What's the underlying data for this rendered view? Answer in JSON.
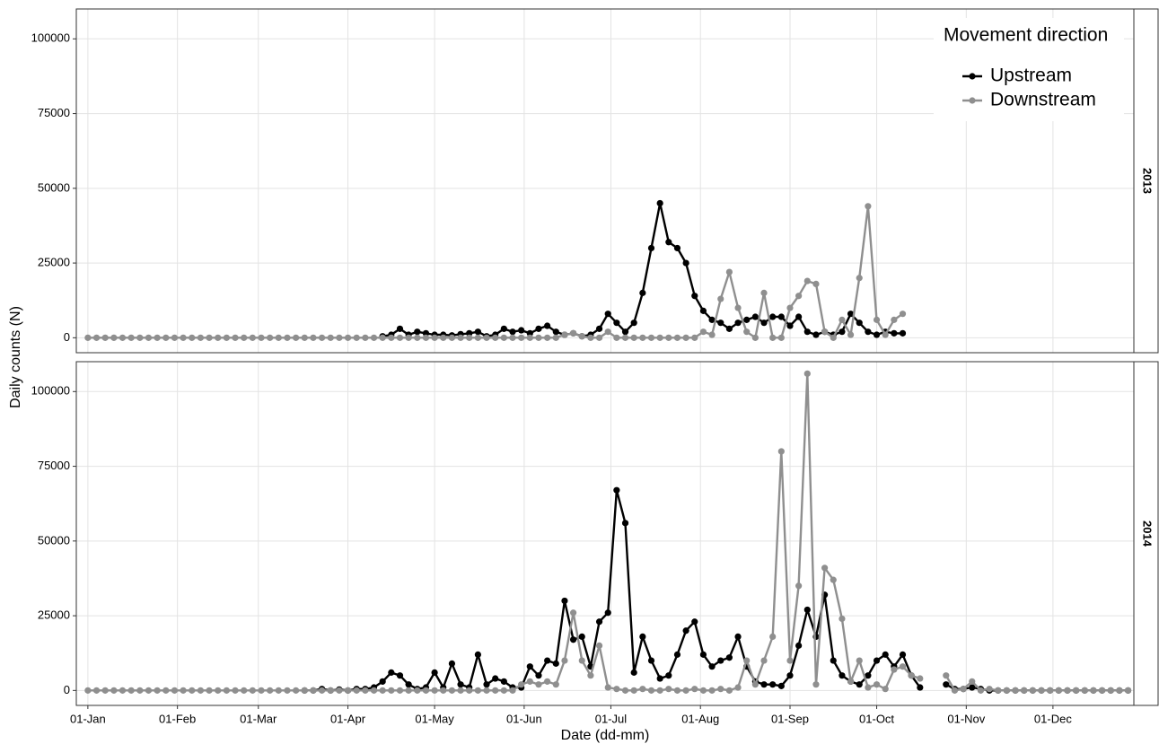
{
  "chart_data": [
    {
      "type": "line",
      "title": "2013",
      "y_label": "Daily counts (N)",
      "legend_title": "Movement direction",
      "x": [
        0,
        3,
        6,
        9,
        12,
        15,
        18,
        21,
        24,
        27,
        30,
        33,
        36,
        39,
        42,
        45,
        48,
        51,
        54,
        57,
        60,
        63,
        66,
        69,
        72,
        75,
        78,
        81,
        84,
        87,
        90,
        93,
        96,
        99,
        102,
        105,
        108,
        111,
        114,
        117,
        120,
        123,
        126,
        129,
        132,
        135,
        138,
        141,
        144,
        147,
        150,
        153,
        156,
        159,
        162,
        165,
        168,
        171,
        174,
        177,
        180,
        183,
        186,
        189,
        192,
        195,
        198,
        201,
        204,
        207,
        210,
        213,
        216,
        219,
        222,
        225,
        228,
        231,
        234,
        237,
        240,
        243,
        246,
        249,
        252,
        255,
        258,
        261,
        264,
        267,
        270,
        273,
        276,
        279,
        282,
        285,
        288,
        291,
        294,
        297,
        300,
        303,
        306,
        309,
        312,
        315,
        318,
        321,
        324,
        327,
        330,
        333,
        336,
        339,
        342,
        345,
        348,
        351,
        354,
        357,
        360
      ],
      "series": [
        {
          "name": "Upstream",
          "color": "#000000",
          "values": [
            null,
            null,
            null,
            null,
            null,
            null,
            null,
            null,
            null,
            null,
            null,
            null,
            null,
            null,
            null,
            null,
            null,
            null,
            null,
            null,
            null,
            null,
            null,
            null,
            null,
            null,
            null,
            null,
            null,
            null,
            null,
            null,
            null,
            null,
            500,
            1000,
            3000,
            1000,
            2000,
            1500,
            1000,
            1000,
            800,
            1200,
            1500,
            2000,
            500,
            1000,
            3000,
            2000,
            2500,
            1500,
            3000,
            4000,
            2000,
            1000,
            1500,
            500,
            1000,
            3000,
            8000,
            5000,
            2000,
            5000,
            15000,
            30000,
            45000,
            32000,
            30000,
            25000,
            14000,
            9000,
            6000,
            5000,
            3000,
            5000,
            6000,
            7000,
            5000,
            7000,
            7000,
            4000,
            7000,
            2000,
            1000,
            2000,
            1000,
            2000,
            8000,
            5000,
            2000,
            1000,
            2000,
            1500,
            1500,
            null,
            null,
            null,
            null,
            null,
            null,
            null,
            null,
            null,
            null,
            null,
            null,
            null,
            null,
            null,
            null,
            null,
            null,
            null,
            null,
            null,
            null,
            null,
            null,
            null,
            null
          ]
        },
        {
          "name": "Downstream",
          "color": "#8f8f8f",
          "values": [
            0,
            0,
            0,
            0,
            0,
            0,
            0,
            0,
            0,
            0,
            0,
            0,
            0,
            0,
            0,
            0,
            0,
            0,
            0,
            0,
            0,
            0,
            0,
            0,
            0,
            0,
            0,
            0,
            0,
            0,
            0,
            0,
            0,
            0,
            0,
            0,
            0,
            0,
            0,
            0,
            0,
            0,
            0,
            0,
            0,
            0,
            0,
            0,
            0,
            0,
            0,
            0,
            0,
            0,
            0,
            1000,
            1500,
            500,
            0,
            0,
            2000,
            0,
            0,
            0,
            0,
            0,
            0,
            0,
            0,
            0,
            0,
            2000,
            1000,
            13000,
            22000,
            10000,
            2000,
            0,
            15000,
            0,
            0,
            10000,
            14000,
            19000,
            18000,
            2000,
            0,
            6000,
            1000,
            20000,
            44000,
            6000,
            1000,
            6000,
            8000,
            null,
            null,
            null,
            null,
            null,
            null,
            null,
            null,
            null,
            null,
            null,
            null,
            null,
            null,
            null,
            null,
            null,
            null,
            null,
            null,
            null,
            null,
            null,
            null,
            null,
            null
          ]
        }
      ],
      "xlim": [
        -4,
        362
      ],
      "ylim": [
        -5000,
        110000
      ],
      "yticks": [
        0,
        25000,
        50000,
        75000,
        100000
      ],
      "grid": true,
      "legend": "top-right"
    },
    {
      "type": "line",
      "title": "2014",
      "x_label": "Date (dd-mm)",
      "x": [
        0,
        3,
        6,
        9,
        12,
        15,
        18,
        21,
        24,
        27,
        30,
        33,
        36,
        39,
        42,
        45,
        48,
        51,
        54,
        57,
        60,
        63,
        66,
        69,
        72,
        75,
        78,
        81,
        84,
        87,
        90,
        93,
        96,
        99,
        102,
        105,
        108,
        111,
        114,
        117,
        120,
        123,
        126,
        129,
        132,
        135,
        138,
        141,
        144,
        147,
        150,
        153,
        156,
        159,
        162,
        165,
        168,
        171,
        174,
        177,
        180,
        183,
        186,
        189,
        192,
        195,
        198,
        201,
        204,
        207,
        210,
        213,
        216,
        219,
        222,
        225,
        228,
        231,
        234,
        237,
        240,
        243,
        246,
        249,
        252,
        255,
        258,
        261,
        264,
        267,
        270,
        273,
        276,
        279,
        282,
        285,
        288,
        291,
        294,
        297,
        300,
        303,
        306,
        309,
        312,
        315,
        318,
        321,
        324,
        327,
        330,
        333,
        336,
        339,
        342,
        345,
        348,
        351,
        354,
        357,
        360
      ],
      "series": [
        {
          "color": "#000000",
          "values": [
            null,
            null,
            null,
            null,
            null,
            null,
            null,
            null,
            null,
            null,
            null,
            null,
            null,
            null,
            null,
            null,
            null,
            null,
            null,
            null,
            null,
            null,
            null,
            null,
            null,
            0,
            0,
            500,
            0,
            300,
            0,
            500,
            500,
            1000,
            3000,
            6000,
            5000,
            2000,
            500,
            1000,
            6000,
            1000,
            9000,
            2000,
            1000,
            12000,
            2000,
            4000,
            3000,
            1000,
            1000,
            8000,
            5000,
            10000,
            9000,
            30000,
            17000,
            18000,
            8000,
            23000,
            26000,
            67000,
            56000,
            6000,
            18000,
            10000,
            4000,
            5000,
            12000,
            20000,
            23000,
            12000,
            8000,
            10000,
            11000,
            18000,
            8000,
            3000,
            2000,
            2000,
            1500,
            5000,
            15000,
            27000,
            18000,
            32000,
            10000,
            5000,
            3000,
            2000,
            5000,
            10000,
            12000,
            8000,
            12000,
            5000,
            1000,
            null,
            null,
            2000,
            500,
            500,
            1000,
            500,
            0,
            0,
            0,
            0,
            0,
            0,
            0,
            0,
            0,
            0,
            0,
            0,
            0,
            0,
            0,
            0,
            0
          ]
        },
        {
          "color": "#8f8f8f",
          "values": [
            0,
            0,
            0,
            0,
            0,
            0,
            0,
            0,
            0,
            0,
            0,
            0,
            0,
            0,
            0,
            0,
            0,
            0,
            0,
            0,
            0,
            0,
            0,
            0,
            0,
            0,
            0,
            0,
            0,
            0,
            0,
            0,
            0,
            0,
            0,
            0,
            0,
            0,
            0,
            0,
            0,
            0,
            0,
            0,
            0,
            0,
            0,
            0,
            0,
            0,
            2000,
            3000,
            2000,
            3000,
            2000,
            10000,
            26000,
            10000,
            5000,
            15000,
            1000,
            500,
            0,
            0,
            500,
            0,
            0,
            500,
            0,
            0,
            500,
            0,
            0,
            500,
            0,
            1000,
            10000,
            2000,
            10000,
            18000,
            80000,
            10000,
            35000,
            106000,
            2000,
            41000,
            37000,
            24000,
            3000,
            10000,
            1000,
            2000,
            500,
            7000,
            8000,
            5000,
            4000,
            null,
            null,
            5000,
            0,
            500,
            3000,
            0,
            500,
            0,
            0,
            0,
            0,
            0,
            0,
            0,
            0,
            0,
            0,
            0,
            0,
            0,
            0,
            0,
            0
          ]
        }
      ],
      "xlim": [
        -4,
        362
      ],
      "ylim": [
        -5000,
        110000
      ],
      "yticks": [
        0,
        25000,
        50000,
        75000,
        100000
      ],
      "grid": true,
      "xticks": [
        {
          "value": 0,
          "label": "01-Jan"
        },
        {
          "value": 31,
          "label": "01-Feb"
        },
        {
          "value": 59,
          "label": "01-Mar"
        },
        {
          "value": 90,
          "label": "01-Apr"
        },
        {
          "value": 120,
          "label": "01-May"
        },
        {
          "value": 151,
          "label": "01-Jun"
        },
        {
          "value": 181,
          "label": "01-Jul"
        },
        {
          "value": 212,
          "label": "01-Aug"
        },
        {
          "value": 243,
          "label": "01-Sep"
        },
        {
          "value": 273,
          "label": "01-Oct"
        },
        {
          "value": 304,
          "label": "01-Nov"
        },
        {
          "value": 334,
          "label": "01-Dec"
        }
      ]
    }
  ]
}
